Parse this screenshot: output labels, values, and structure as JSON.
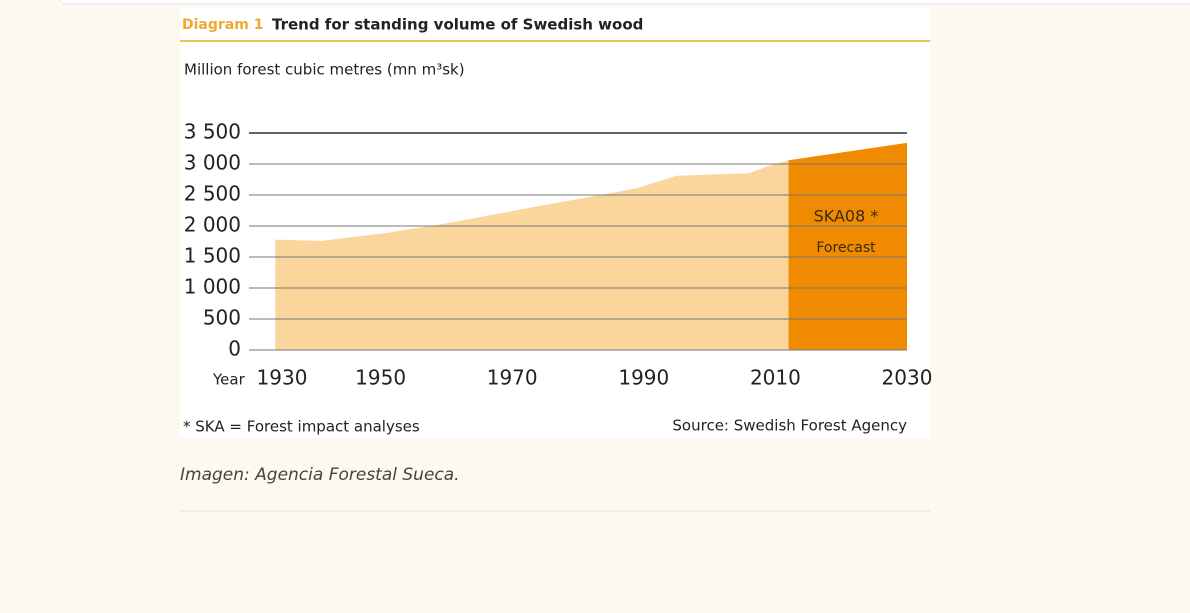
{
  "chart_data": {
    "type": "area",
    "title_prefix": "Diagram 1",
    "title": "Trend for standing volume of Swedish wood",
    "ylabel": "Million forest cubic metres (mn m³sk)",
    "xlabel": "Year",
    "series": [
      {
        "color": "#fad59c",
        "x": [
          1934,
          1941,
          1951,
          1961,
          1973,
          1985,
          1989,
          1995,
          2006,
          2009,
          2012
        ],
        "values": [
          1780,
          1760,
          1890,
          2060,
          2300,
          2530,
          2610,
          2810,
          2850,
          2970,
          3060
        ]
      },
      {
        "color": "#f08a00",
        "x": [
          2012,
          2030
        ],
        "values": [
          3060,
          3340
        ]
      }
    ],
    "xlim": [
      1930,
      2030
    ],
    "xticks": [
      1930,
      1950,
      1970,
      1990,
      2010,
      2030
    ],
    "ylim": [
      0,
      3500
    ],
    "yticks": [
      0,
      500,
      {
        "value": 1000,
        "label": "1 000"
      },
      {
        "value": 1500,
        "label": "1 500"
      },
      {
        "value": 2000,
        "label": "2 000"
      },
      {
        "value": 2500,
        "label": "2 500"
      },
      {
        "value": 3000,
        "label": "3 000"
      },
      {
        "value": 3500,
        "label": "3 500"
      }
    ],
    "grid": true,
    "annotations": [
      "SKA08 *",
      "Forecast"
    ],
    "footnote": "* SKA = Forest impact analyses",
    "source": "Source: Swedish Forest Agency"
  },
  "caption": "Imagen: Agencia Forestal Sueca."
}
